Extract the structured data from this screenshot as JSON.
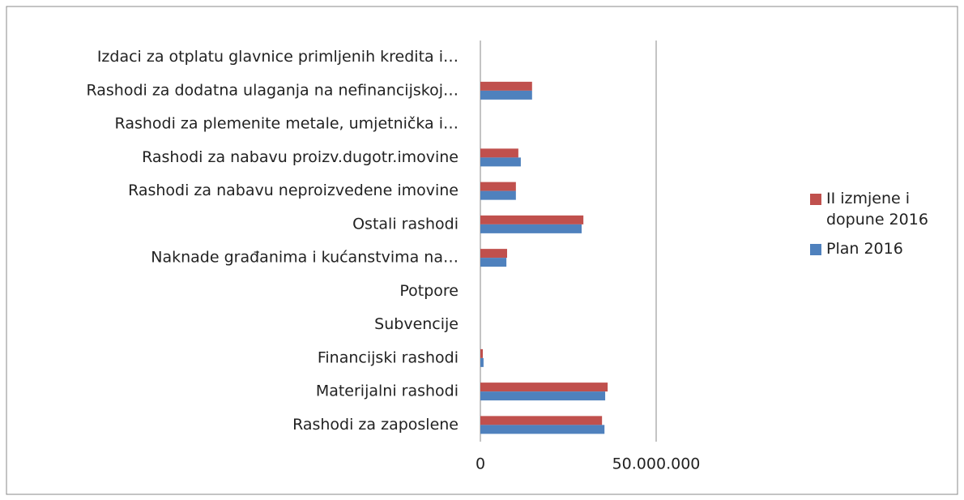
{
  "chart_data": {
    "type": "bar",
    "orientation": "horizontal",
    "categories": [
      "Rashodi za zaposlene",
      "Materijalni rashodi",
      "Financijski rashodi",
      "Subvencije",
      "Potpore",
      "Naknade građanima i kućanstvima na…",
      "Ostali rashodi",
      "Rashodi za nabavu neproizvedene imovine",
      "Rashodi za nabavu proizv.dugotr.imovine",
      "Rashodi za plemenite metale, umjetnička i…",
      "Rashodi za dodatna ulaganja na nefinancijskoj…",
      "Izdaci za otplatu glavnice primljenih kredita i…"
    ],
    "series": [
      {
        "name": "II izmjene i dopune 2016",
        "color": "#c0504d",
        "values": [
          34600000,
          36200000,
          700000,
          0,
          0,
          7600000,
          29300000,
          10100000,
          10800000,
          0,
          14700000,
          0
        ]
      },
      {
        "name": "Plan 2016",
        "color": "#4f81bd",
        "values": [
          35300000,
          35500000,
          900000,
          0,
          0,
          7400000,
          28800000,
          10100000,
          11500000,
          0,
          14700000,
          0
        ]
      }
    ],
    "xlim": [
      0,
      50000000
    ],
    "xticks": [
      0,
      {
        "value": 50000000,
        "label": "50.000.000"
      }
    ],
    "grid": true,
    "legend": "right"
  }
}
